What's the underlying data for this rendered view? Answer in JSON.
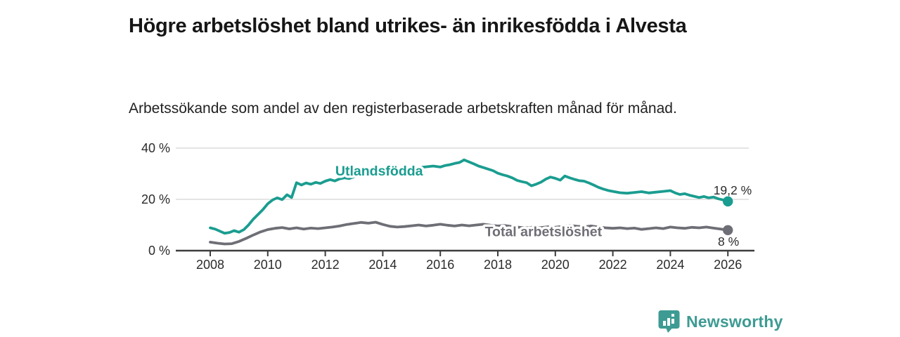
{
  "header": {
    "title": "Högre arbetslöshet bland utrikes- än inrikesfödda i Alvesta",
    "subtitle": "Arbetssökande som andel av den registerbaserade arbetskraften månad för månad."
  },
  "chart_data": {
    "type": "line",
    "title": "Högre arbetslöshet bland utrikes- än inrikesfödda i Alvesta",
    "xlabel": "",
    "ylabel": "Arbetssökande som andel av den registerbaserade arbetskraften",
    "grid": "horizontal",
    "grid_color": "#dedede",
    "axis_color": "#3d3d3d",
    "x_axis": {
      "ticks": [
        2008,
        2010,
        2012,
        2014,
        2016,
        2018,
        2020,
        2022,
        2024,
        2026
      ]
    },
    "y_axis": {
      "ticks": [
        0,
        20,
        40
      ],
      "tick_labels": [
        "0 %",
        "20 %",
        "40 %"
      ],
      "range": [
        0,
        42
      ]
    },
    "series": [
      {
        "name": "Utlandsfödda",
        "color": "#1a9d90",
        "end_label": "19,2 %",
        "end_value": 19.2,
        "end_label_offset": [
          34,
          -10
        ],
        "name_label_at": [
          2012.35,
          31.2
        ],
        "points": [
          [
            2008.0,
            8.9
          ],
          [
            2008.17,
            8.4
          ],
          [
            2008.33,
            7.6
          ],
          [
            2008.5,
            6.8
          ],
          [
            2008.67,
            7.1
          ],
          [
            2008.83,
            7.8
          ],
          [
            2009.0,
            7.2
          ],
          [
            2009.17,
            8.2
          ],
          [
            2009.33,
            10.0
          ],
          [
            2009.5,
            12.3
          ],
          [
            2009.67,
            14.2
          ],
          [
            2009.83,
            16.0
          ],
          [
            2010.0,
            18.3
          ],
          [
            2010.17,
            19.8
          ],
          [
            2010.33,
            20.6
          ],
          [
            2010.5,
            19.9
          ],
          [
            2010.67,
            21.8
          ],
          [
            2010.83,
            20.7
          ],
          [
            2011.0,
            26.5
          ],
          [
            2011.17,
            25.6
          ],
          [
            2011.33,
            26.4
          ],
          [
            2011.5,
            25.9
          ],
          [
            2011.67,
            26.6
          ],
          [
            2011.83,
            26.2
          ],
          [
            2012.0,
            27.1
          ],
          [
            2012.17,
            27.7
          ],
          [
            2012.33,
            27.2
          ],
          [
            2012.5,
            28.0
          ],
          [
            2012.67,
            28.4
          ],
          [
            2012.83,
            28.1
          ],
          [
            2013.0,
            28.8
          ],
          [
            2013.25,
            29.6
          ],
          [
            2013.5,
            30.1
          ],
          [
            2013.75,
            30.4
          ],
          [
            2014.0,
            30.8
          ],
          [
            2014.25,
            31.2
          ],
          [
            2014.5,
            31.5
          ],
          [
            2014.75,
            31.9
          ],
          [
            2015.0,
            32.1
          ],
          [
            2015.25,
            32.4
          ],
          [
            2015.5,
            32.7
          ],
          [
            2015.75,
            33.0
          ],
          [
            2016.0,
            32.6
          ],
          [
            2016.17,
            33.2
          ],
          [
            2016.33,
            33.5
          ],
          [
            2016.5,
            34.0
          ],
          [
            2016.67,
            34.4
          ],
          [
            2016.83,
            35.4
          ],
          [
            2017.0,
            34.6
          ],
          [
            2017.17,
            33.8
          ],
          [
            2017.33,
            33.0
          ],
          [
            2017.5,
            32.4
          ],
          [
            2017.67,
            31.8
          ],
          [
            2017.83,
            31.2
          ],
          [
            2018.0,
            30.2
          ],
          [
            2018.17,
            29.6
          ],
          [
            2018.33,
            29.1
          ],
          [
            2018.5,
            28.4
          ],
          [
            2018.67,
            27.4
          ],
          [
            2018.83,
            26.9
          ],
          [
            2019.0,
            26.5
          ],
          [
            2019.17,
            25.3
          ],
          [
            2019.33,
            25.9
          ],
          [
            2019.5,
            26.7
          ],
          [
            2019.67,
            27.9
          ],
          [
            2019.83,
            28.7
          ],
          [
            2020.0,
            28.2
          ],
          [
            2020.17,
            27.5
          ],
          [
            2020.33,
            29.1
          ],
          [
            2020.5,
            28.4
          ],
          [
            2020.67,
            27.8
          ],
          [
            2020.83,
            27.3
          ],
          [
            2021.0,
            27.1
          ],
          [
            2021.17,
            26.4
          ],
          [
            2021.33,
            25.6
          ],
          [
            2021.5,
            24.7
          ],
          [
            2021.67,
            24.0
          ],
          [
            2021.83,
            23.5
          ],
          [
            2022.0,
            23.1
          ],
          [
            2022.25,
            22.6
          ],
          [
            2022.5,
            22.4
          ],
          [
            2022.75,
            22.7
          ],
          [
            2023.0,
            23.0
          ],
          [
            2023.25,
            22.5
          ],
          [
            2023.5,
            22.8
          ],
          [
            2023.75,
            23.1
          ],
          [
            2024.0,
            23.4
          ],
          [
            2024.17,
            22.5
          ],
          [
            2024.33,
            21.9
          ],
          [
            2024.5,
            22.2
          ],
          [
            2024.67,
            21.6
          ],
          [
            2024.83,
            21.2
          ],
          [
            2025.0,
            20.7
          ],
          [
            2025.17,
            21.1
          ],
          [
            2025.33,
            20.6
          ],
          [
            2025.5,
            20.9
          ],
          [
            2025.67,
            20.2
          ],
          [
            2025.83,
            19.8
          ],
          [
            2026.0,
            19.2
          ]
        ]
      },
      {
        "name": "Total arbetslöshet",
        "color": "#6e6e76",
        "end_label": "8 %",
        "end_value": 8,
        "end_label_offset": [
          16,
          22
        ],
        "name_label_at": [
          2017.55,
          7.5
        ],
        "points": [
          [
            2008.0,
            3.3
          ],
          [
            2008.25,
            2.9
          ],
          [
            2008.5,
            2.6
          ],
          [
            2008.75,
            2.7
          ],
          [
            2009.0,
            3.6
          ],
          [
            2009.25,
            4.8
          ],
          [
            2009.5,
            6.1
          ],
          [
            2009.75,
            7.3
          ],
          [
            2010.0,
            8.2
          ],
          [
            2010.25,
            8.7
          ],
          [
            2010.5,
            9.0
          ],
          [
            2010.75,
            8.5
          ],
          [
            2011.0,
            8.9
          ],
          [
            2011.25,
            8.4
          ],
          [
            2011.5,
            8.8
          ],
          [
            2011.75,
            8.6
          ],
          [
            2012.0,
            8.9
          ],
          [
            2012.25,
            9.2
          ],
          [
            2012.5,
            9.6
          ],
          [
            2012.75,
            10.2
          ],
          [
            2013.0,
            10.6
          ],
          [
            2013.25,
            11.0
          ],
          [
            2013.5,
            10.7
          ],
          [
            2013.75,
            11.1
          ],
          [
            2014.0,
            10.2
          ],
          [
            2014.25,
            9.5
          ],
          [
            2014.5,
            9.2
          ],
          [
            2014.75,
            9.4
          ],
          [
            2015.0,
            9.7
          ],
          [
            2015.25,
            10.0
          ],
          [
            2015.5,
            9.6
          ],
          [
            2015.75,
            9.9
          ],
          [
            2016.0,
            10.3
          ],
          [
            2016.25,
            9.9
          ],
          [
            2016.5,
            9.6
          ],
          [
            2016.75,
            10.0
          ],
          [
            2017.0,
            9.7
          ],
          [
            2017.25,
            10.0
          ],
          [
            2017.5,
            10.3
          ],
          [
            2017.75,
            9.9
          ],
          [
            2018.0,
            9.6
          ],
          [
            2018.25,
            9.8
          ],
          [
            2018.5,
            9.4
          ],
          [
            2018.75,
            9.1
          ],
          [
            2019.0,
            8.9
          ],
          [
            2019.25,
            9.2
          ],
          [
            2019.5,
            9.0
          ],
          [
            2019.75,
            9.3
          ],
          [
            2020.0,
            9.1
          ],
          [
            2020.25,
            9.5
          ],
          [
            2020.5,
            9.8
          ],
          [
            2020.75,
            9.5
          ],
          [
            2021.0,
            9.3
          ],
          [
            2021.25,
            9.6
          ],
          [
            2021.5,
            9.2
          ],
          [
            2021.75,
            8.9
          ],
          [
            2022.0,
            8.7
          ],
          [
            2022.25,
            8.9
          ],
          [
            2022.5,
            8.6
          ],
          [
            2022.75,
            8.8
          ],
          [
            2023.0,
            8.3
          ],
          [
            2023.25,
            8.6
          ],
          [
            2023.5,
            8.9
          ],
          [
            2023.75,
            8.6
          ],
          [
            2024.0,
            9.2
          ],
          [
            2024.25,
            8.9
          ],
          [
            2024.5,
            8.7
          ],
          [
            2024.75,
            9.1
          ],
          [
            2025.0,
            8.9
          ],
          [
            2025.25,
            9.2
          ],
          [
            2025.5,
            8.8
          ],
          [
            2025.75,
            8.4
          ],
          [
            2026.0,
            8.0
          ]
        ]
      }
    ]
  },
  "footer": {
    "brand": "Newsworthy",
    "brand_color": "#3d9b93"
  }
}
